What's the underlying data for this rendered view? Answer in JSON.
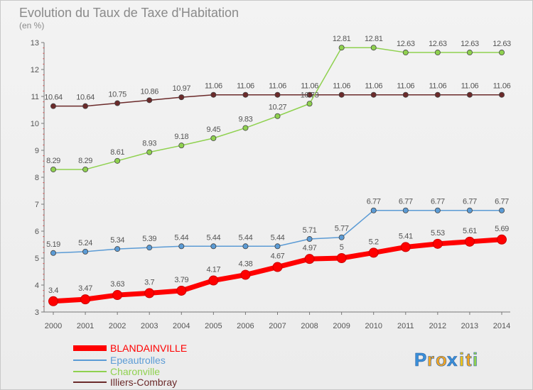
{
  "chart_data": {
    "type": "line",
    "title": "Evolution du Taux de Taxe d'Habitation",
    "subtitle": "(en %)",
    "xlabel": "",
    "ylabel": "",
    "x": [
      2000,
      2001,
      2002,
      2003,
      2004,
      2005,
      2006,
      2007,
      2008,
      2009,
      2010,
      2011,
      2012,
      2013,
      2014
    ],
    "ylim": [
      3,
      13
    ],
    "yticks": [
      3,
      4,
      5,
      6,
      7,
      8,
      9,
      10,
      11,
      12,
      13
    ],
    "grid": false,
    "legend_position": "bottom-left",
    "series": [
      {
        "name": "BLANDAINVILLE",
        "color": "#ff0000",
        "labels": [
          "3.4",
          "3.47",
          "3.63",
          "3.7",
          "3.79",
          "4.17",
          "4.38",
          "4.67",
          "4.97",
          "5",
          "5.2",
          "5.41",
          "5.53",
          "5.61",
          "5.69"
        ],
        "values": [
          3.4,
          3.47,
          3.63,
          3.7,
          3.79,
          4.17,
          4.38,
          4.67,
          4.97,
          5.0,
          5.2,
          5.41,
          5.53,
          5.61,
          5.69
        ]
      },
      {
        "name": "Epeautrolles",
        "color": "#5b9bd5",
        "labels": [
          "5.19",
          "5.24",
          "5.34",
          "5.39",
          "5.44",
          "5.44",
          "5.44",
          "5.44",
          "5.71",
          "5.77",
          "6.77",
          "6.77",
          "6.77",
          "6.77",
          "6.77"
        ],
        "values": [
          5.19,
          5.24,
          5.34,
          5.39,
          5.44,
          5.44,
          5.44,
          5.44,
          5.71,
          5.77,
          6.77,
          6.77,
          6.77,
          6.77,
          6.77
        ]
      },
      {
        "name": "Charonville",
        "color": "#8fd14f",
        "labels": [
          "8.29",
          "8.29",
          "8.61",
          "8.93",
          "9.18",
          "9.45",
          "9.83",
          "10.27",
          "10.73",
          "12.81",
          "12.81",
          "12.63",
          "12.63",
          "12.63",
          "12.63"
        ],
        "values": [
          8.29,
          8.29,
          8.61,
          8.93,
          9.18,
          9.45,
          9.83,
          10.27,
          10.73,
          12.81,
          12.81,
          12.63,
          12.63,
          12.63,
          12.63
        ]
      },
      {
        "name": "Illiers-Combray",
        "color": "#6b2a2a",
        "labels": [
          "10.64",
          "10.64",
          "10.75",
          "10.86",
          "10.97",
          "11.06",
          "11.06",
          "11.06",
          "11.06",
          "11.06",
          "11.06",
          "11.06",
          "11.06",
          "11.06",
          "11.06"
        ],
        "values": [
          10.64,
          10.64,
          10.75,
          10.86,
          10.97,
          11.06,
          11.06,
          11.06,
          11.06,
          11.06,
          11.06,
          11.06,
          11.06,
          11.06,
          11.06
        ]
      }
    ]
  },
  "logo": {
    "text": "Proxiti",
    "letters": [
      "P",
      "r",
      "o",
      "x",
      "i",
      "t",
      "i"
    ],
    "colors": [
      "#3a8fd9",
      "#f5a623",
      "#f5a623",
      "#3a8fd9",
      "#f0c419",
      "#f5a623",
      "#8fd14f"
    ]
  }
}
